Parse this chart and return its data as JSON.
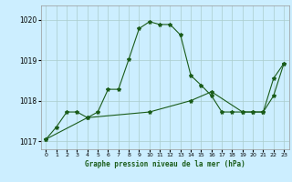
{
  "title": "Graphe pression niveau de la mer (hPa)",
  "bg_color": "#cceeff",
  "grid_color": "#aacccc",
  "line_color": "#1a5c1a",
  "xlim": [
    -0.5,
    23.5
  ],
  "ylim": [
    1016.8,
    1020.35
  ],
  "yticks": [
    1017,
    1018,
    1019,
    1020
  ],
  "ytick_labels": [
    "1017",
    "1018",
    "1019",
    "1020"
  ],
  "xticks": [
    0,
    1,
    2,
    3,
    4,
    5,
    6,
    7,
    8,
    9,
    10,
    11,
    12,
    13,
    14,
    15,
    16,
    17,
    18,
    19,
    20,
    21,
    22,
    23
  ],
  "series1_x": [
    0,
    1,
    2,
    3,
    4,
    5,
    6,
    7,
    8,
    9,
    10,
    11,
    12,
    13,
    14,
    15,
    16,
    17,
    18,
    19,
    20,
    21,
    22,
    23
  ],
  "series1_y": [
    1017.05,
    1017.35,
    1017.72,
    1017.72,
    1017.58,
    1017.72,
    1018.28,
    1018.28,
    1019.02,
    1019.78,
    1019.95,
    1019.88,
    1019.88,
    1019.62,
    1018.62,
    1018.38,
    1018.12,
    1017.72,
    1017.72,
    1017.72,
    1017.72,
    1017.72,
    1018.55,
    1018.92
  ],
  "series2_x": [
    0,
    4,
    10,
    14,
    16,
    19,
    20,
    21,
    22,
    23
  ],
  "series2_y": [
    1017.05,
    1017.58,
    1017.72,
    1018.0,
    1018.22,
    1017.72,
    1017.72,
    1017.72,
    1018.12,
    1018.92
  ]
}
